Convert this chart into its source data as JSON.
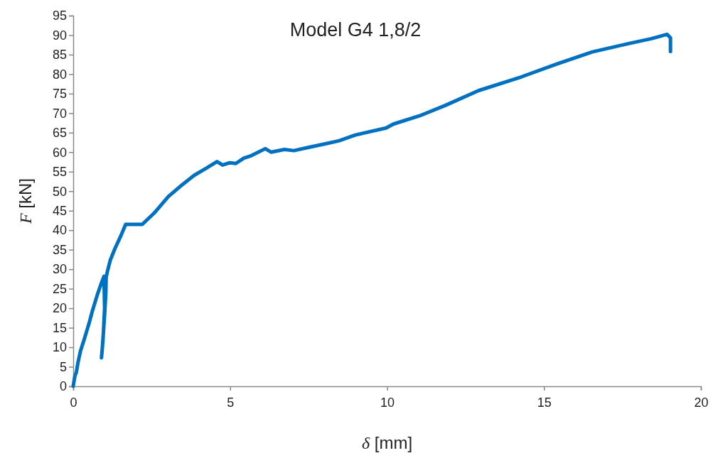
{
  "chart_data": {
    "type": "line",
    "title": "Model G4 1,8/2",
    "xlabel": "δ [mm]",
    "ylabel": "F [kN]",
    "xlim": [
      0,
      20
    ],
    "xticks": [
      0,
      5,
      10,
      15,
      20
    ],
    "ylim": [
      0,
      95
    ],
    "yticks": [
      0,
      5,
      10,
      15,
      20,
      25,
      30,
      35,
      40,
      45,
      50,
      55,
      60,
      65,
      70,
      75,
      80,
      85,
      90,
      95
    ],
    "grid": false,
    "marker": "none",
    "line_style": "solid",
    "series": [
      {
        "color": "#0070c0",
        "x": [
          0,
          0.05,
          0.1,
          0.15,
          0.23,
          0.35,
          0.5,
          0.6,
          0.77,
          0.9,
          0.98,
          1.0,
          0.95,
          0.9,
          0.93,
          1.0,
          1.04,
          1.05,
          1.1,
          1.18,
          1.33,
          1.52,
          1.67,
          2.2,
          2.58,
          3.03,
          3.48,
          3.86,
          4.24,
          4.58,
          4.76,
          4.99,
          5.18,
          5.44,
          5.67,
          6.12,
          6.31,
          6.73,
          7.03,
          7.48,
          8.01,
          8.46,
          8.99,
          9.97,
          10.2,
          11.03,
          11.86,
          12.92,
          14.28,
          15.41,
          16.54,
          17.67,
          18.43,
          18.92,
          19.03,
          19.03
        ],
        "values": [
          0,
          2.5,
          3.6,
          6,
          9,
          12,
          16,
          19,
          23.5,
          26.5,
          28.2,
          20,
          12,
          7.3,
          10,
          18.3,
          24,
          28,
          29.8,
          32.3,
          35.3,
          38.6,
          41.5,
          41.5,
          44.4,
          48.6,
          51.7,
          54.1,
          55.9,
          57.6,
          56.7,
          57.3,
          57.1,
          58.5,
          59.1,
          60.9,
          60,
          60.7,
          60.4,
          61.2,
          62.1,
          62.9,
          64.4,
          66.2,
          67.2,
          69.3,
          72,
          75.8,
          79.3,
          82.6,
          85.7,
          87.8,
          89.1,
          90.2,
          89.3,
          85.8
        ]
      }
    ]
  }
}
